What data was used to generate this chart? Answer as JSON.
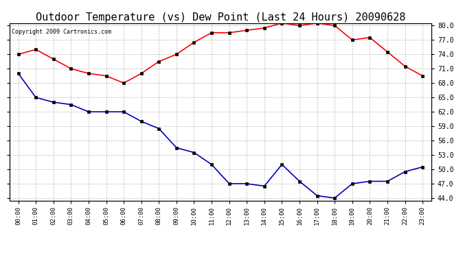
{
  "title": "Outdoor Temperature (vs) Dew Point (Last 24 Hours) 20090628",
  "copyright_text": "Copyright 2009 Cartronics.com",
  "hours": [
    "00:00",
    "01:00",
    "02:00",
    "03:00",
    "04:00",
    "05:00",
    "06:00",
    "07:00",
    "08:00",
    "09:00",
    "10:00",
    "11:00",
    "12:00",
    "13:00",
    "14:00",
    "15:00",
    "16:00",
    "17:00",
    "18:00",
    "19:00",
    "20:00",
    "21:00",
    "22:00",
    "23:00"
  ],
  "temp_red": [
    74.0,
    75.0,
    73.0,
    71.0,
    70.0,
    69.5,
    68.0,
    70.0,
    72.5,
    74.0,
    76.5,
    78.5,
    78.5,
    79.0,
    79.5,
    80.5,
    80.0,
    80.5,
    80.0,
    77.0,
    77.5,
    74.5,
    71.5,
    69.5
  ],
  "dew_blue": [
    70.0,
    65.0,
    64.0,
    63.5,
    62.0,
    62.0,
    62.0,
    60.0,
    58.5,
    54.5,
    53.5,
    51.0,
    47.0,
    47.0,
    46.5,
    51.0,
    47.5,
    44.5,
    44.0,
    47.0,
    47.5,
    47.5,
    49.5,
    50.5
  ],
  "ylim_min": 43.5,
  "ylim_max": 80.5,
  "yticks": [
    44.0,
    47.0,
    50.0,
    53.0,
    56.0,
    59.0,
    62.0,
    65.0,
    68.0,
    71.0,
    74.0,
    77.0,
    80.0
  ],
  "red_color": "#ff0000",
  "blue_color": "#0000bb",
  "bg_color": "#ffffff",
  "grid_color": "#bbbbbb",
  "title_fontsize": 11,
  "marker": "s",
  "marker_size": 3,
  "linewidth": 1.2
}
